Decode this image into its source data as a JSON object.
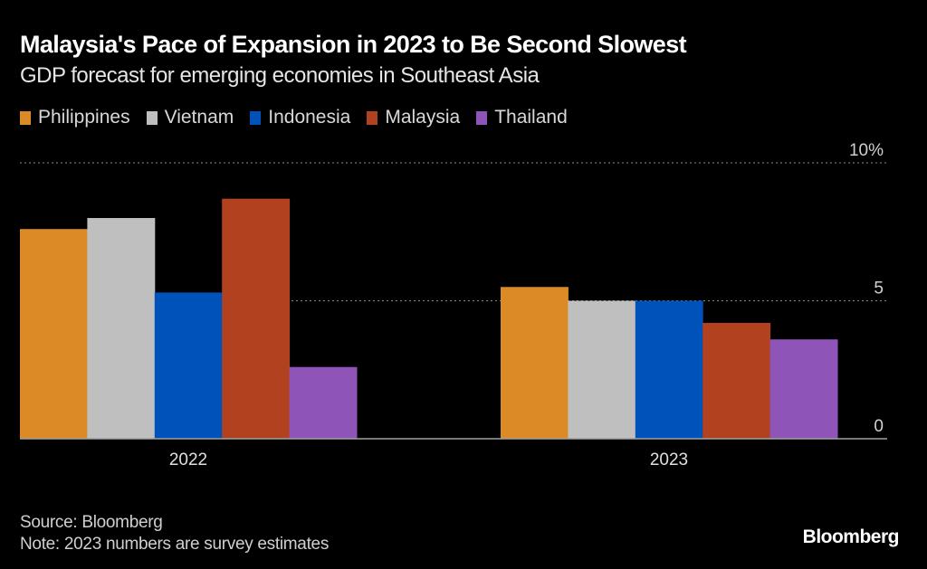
{
  "chart_data": {
    "type": "bar",
    "title": "Malaysia's Pace of Expansion in 2023 to Be Second Slowest",
    "subtitle": "GDP forecast for emerging economies in Southeast Asia",
    "categories": [
      "2022",
      "2023"
    ],
    "series": [
      {
        "name": "Philippines",
        "color": "#dc8a25",
        "values": [
          7.6,
          5.5
        ]
      },
      {
        "name": "Vietnam",
        "color": "#bfbfbf",
        "values": [
          8.0,
          5.0
        ]
      },
      {
        "name": "Indonesia",
        "color": "#0052bb",
        "values": [
          5.3,
          5.0
        ]
      },
      {
        "name": "Malaysia",
        "color": "#b2411f",
        "values": [
          8.7,
          4.2
        ]
      },
      {
        "name": "Thailand",
        "color": "#8e54b8",
        "values": [
          2.6,
          3.6
        ]
      }
    ],
    "yticks": [
      {
        "value": 0,
        "label": "0"
      },
      {
        "value": 5,
        "label": "5"
      },
      {
        "value": 10,
        "label": "10%"
      }
    ],
    "ylim": [
      0,
      10
    ],
    "xlabel": "",
    "ylabel": "",
    "grid": true,
    "legend": "top-left"
  },
  "footer": {
    "source": "Source: Bloomberg",
    "note": "Note: 2023 numbers are survey estimates"
  },
  "brand": "Bloomberg"
}
